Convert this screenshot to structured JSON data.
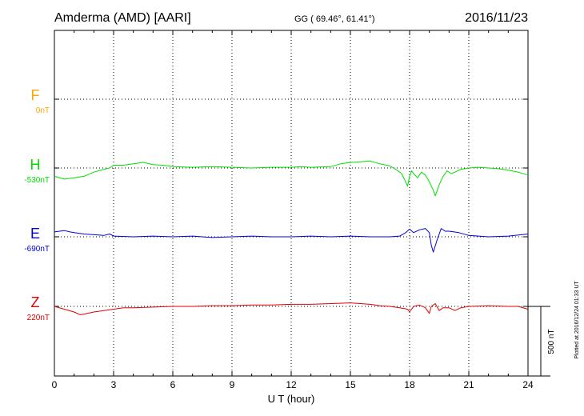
{
  "header": {
    "station": "Amderma (AMD)  [AARI]",
    "coords": "GG ( 69.46°,  61.41°)",
    "date": "2016/11/23"
  },
  "plot_note": "Plotted at 2016/12/24 01:33 UT",
  "scale_label": "500 nT",
  "colors": {
    "F": "#ffa500",
    "H": "#00e000",
    "E": "#0000dd",
    "Z": "#e00000",
    "grid": "#000000"
  },
  "chart_data": {
    "type": "line",
    "xlabel": "U T (hour)",
    "xlim": [
      0,
      24
    ],
    "xticks": [
      0,
      3,
      6,
      9,
      12,
      15,
      18,
      21,
      24
    ],
    "grid": true,
    "nT_per_scale_bar": 500,
    "series": [
      {
        "name": "F",
        "baseline_label": "0nT",
        "x": [],
        "y": []
      },
      {
        "name": "H",
        "baseline_label": "-530nT",
        "x": [
          0,
          0.5,
          1,
          1.5,
          2,
          2.5,
          2.8,
          3,
          3.5,
          4,
          4.5,
          5,
          5.5,
          6,
          7,
          8,
          9,
          10,
          11,
          12,
          12.5,
          13,
          14,
          14.5,
          15,
          15.5,
          16,
          16.5,
          17,
          17.3,
          17.6,
          17.8,
          17.9,
          18,
          18.1,
          18.2,
          18.4,
          18.6,
          18.8,
          19,
          19.2,
          19.3,
          19.5,
          19.7,
          19.9,
          20.1,
          20.3,
          20.6,
          21,
          21.5,
          22,
          22.5,
          23,
          23.5,
          24
        ],
        "y": [
          -60,
          -80,
          -70,
          -60,
          -30,
          -10,
          0,
          20,
          20,
          30,
          40,
          25,
          20,
          10,
          5,
          10,
          5,
          0,
          5,
          5,
          10,
          5,
          10,
          30,
          40,
          45,
          50,
          30,
          15,
          -10,
          -40,
          -100,
          -130,
          -60,
          -20,
          -40,
          -70,
          -30,
          -50,
          -100,
          -160,
          -200,
          -120,
          -60,
          -20,
          -40,
          -30,
          -10,
          0,
          5,
          0,
          -5,
          -15,
          -30,
          -50
        ]
      },
      {
        "name": "E",
        "baseline_label": "-690nT",
        "x": [
          0,
          0.5,
          0.8,
          1,
          1.5,
          2,
          2.5,
          2.8,
          3,
          4,
          5,
          6,
          7,
          8,
          9,
          10,
          11,
          12,
          13,
          14,
          15,
          16,
          17,
          17.5,
          17.8,
          18,
          18.2,
          18.5,
          18.8,
          19,
          19.1,
          19.2,
          19.4,
          19.6,
          19.8,
          20,
          20.5,
          21,
          22,
          23,
          24
        ],
        "y": [
          35,
          45,
          35,
          30,
          20,
          15,
          10,
          20,
          5,
          0,
          5,
          0,
          5,
          -5,
          0,
          5,
          0,
          0,
          5,
          0,
          5,
          0,
          0,
          5,
          30,
          55,
          30,
          50,
          60,
          30,
          -60,
          -110,
          -20,
          60,
          40,
          40,
          30,
          10,
          0,
          5,
          20
        ]
      },
      {
        "name": "Z",
        "baseline_label": "220nT",
        "x": [
          0,
          0.5,
          1,
          1.3,
          1.5,
          2,
          2.5,
          3,
          3.5,
          4,
          5,
          6,
          7,
          8,
          9,
          10,
          11,
          12,
          13,
          14,
          15,
          15.5,
          16,
          16.5,
          17,
          17.5,
          17.9,
          18,
          18.2,
          18.5,
          18.8,
          19,
          19.1,
          19.3,
          19.5,
          19.7,
          20,
          20.3,
          20.6,
          21,
          22,
          23,
          23.5,
          24
        ],
        "y": [
          0,
          -20,
          -40,
          -60,
          -55,
          -40,
          -30,
          -20,
          -10,
          -10,
          -5,
          0,
          0,
          5,
          5,
          10,
          10,
          15,
          15,
          20,
          25,
          20,
          15,
          5,
          0,
          -10,
          -20,
          -40,
          0,
          10,
          -10,
          -50,
          0,
          20,
          -30,
          -10,
          -10,
          -30,
          -10,
          0,
          5,
          0,
          0,
          -20
        ]
      }
    ]
  }
}
